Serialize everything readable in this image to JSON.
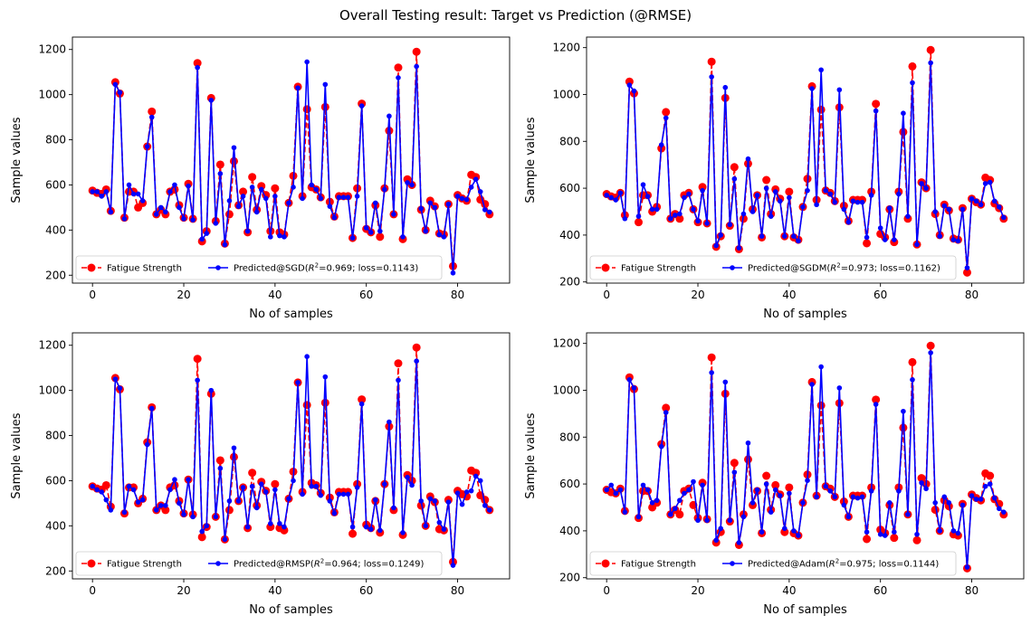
{
  "suptitle": "Overall Testing result: Target vs Prediction (@RMSE)",
  "colors": {
    "target": "#ff0000",
    "predicted": "#0000ff"
  },
  "chart_data": [
    {
      "type": "line",
      "xlabel": "No of samples",
      "ylabel": "Sample values",
      "xlim": [
        -4.4,
        91.4
      ],
      "ylim": [
        165,
        1255
      ],
      "xticks": [
        0,
        20,
        40,
        60,
        80
      ],
      "yticks": [
        200,
        400,
        600,
        800,
        1000,
        1200
      ],
      "legend_position": "lower center",
      "series": [
        {
          "name": "Fatigue Strength",
          "color": "#ff0000",
          "marker": "large-circle",
          "style": "dashed",
          "values": [
            575,
            565,
            560,
            580,
            485,
            1055,
            1005,
            455,
            570,
            570,
            500,
            520,
            770,
            925,
            470,
            490,
            470,
            570,
            580,
            510,
            455,
            605,
            450,
            1140,
            350,
            395,
            985,
            440,
            690,
            340,
            470,
            705,
            510,
            570,
            390,
            635,
            490,
            595,
            555,
            395,
            585,
            390,
            380,
            520,
            640,
            1035,
            550,
            935,
            590,
            580,
            545,
            945,
            525,
            460,
            550,
            550,
            550,
            365,
            585,
            960,
            405,
            390,
            510,
            370,
            585,
            840,
            470,
            1120,
            360,
            625,
            600,
            1190,
            490,
            400,
            530,
            505,
            385,
            380,
            515,
            240,
            555,
            540,
            530,
            645,
            635,
            535,
            515,
            470
          ]
        },
        {
          "name": "Predicted@SGD(R²=0.969; loss=0.1143)",
          "color": "#0000ff",
          "marker": "small-circle",
          "style": "solid",
          "values": [
            570,
            570,
            550,
            570,
            480,
            1045,
            1010,
            450,
            600,
            560,
            560,
            530,
            770,
            900,
            470,
            500,
            480,
            570,
            600,
            500,
            450,
            595,
            445,
            1120,
            360,
            385,
            975,
            430,
            650,
            335,
            530,
            765,
            505,
            550,
            395,
            590,
            480,
            580,
            540,
            370,
            550,
            375,
            370,
            520,
            590,
            1030,
            540,
            1145,
            600,
            580,
            540,
            1045,
            505,
            455,
            545,
            545,
            545,
            365,
            550,
            950,
            410,
            390,
            520,
            395,
            580,
            905,
            470,
            1075,
            370,
            610,
            600,
            1125,
            495,
            395,
            520,
            500,
            380,
            370,
            515,
            210,
            550,
            540,
            535,
            590,
            625,
            570,
            490,
            480
          ]
        }
      ]
    },
    {
      "type": "line",
      "xlabel": "No of samples",
      "ylabel": "Sample values",
      "xlim": [
        -4.4,
        91.4
      ],
      "ylim": [
        195,
        1245
      ],
      "xticks": [
        0,
        20,
        40,
        60,
        80
      ],
      "yticks": [
        200,
        400,
        600,
        800,
        1000,
        1200
      ],
      "legend_position": "lower center",
      "series": [
        {
          "name": "Fatigue Strength",
          "color": "#ff0000",
          "marker": "large-circle",
          "style": "dashed",
          "values": [
            575,
            565,
            560,
            580,
            485,
            1055,
            1005,
            455,
            570,
            570,
            500,
            520,
            770,
            925,
            470,
            490,
            470,
            570,
            580,
            510,
            455,
            605,
            450,
            1140,
            350,
            395,
            985,
            440,
            690,
            340,
            470,
            705,
            510,
            570,
            390,
            635,
            490,
            595,
            555,
            395,
            585,
            390,
            380,
            520,
            640,
            1035,
            550,
            935,
            590,
            580,
            545,
            945,
            525,
            460,
            550,
            550,
            550,
            365,
            585,
            960,
            405,
            390,
            510,
            370,
            585,
            840,
            470,
            1120,
            360,
            625,
            600,
            1190,
            490,
            400,
            530,
            505,
            385,
            380,
            515,
            240,
            555,
            540,
            530,
            645,
            635,
            535,
            515,
            470
          ]
        },
        {
          "name": "Predicted@SGDM(R²=0.973; loss=0.1162)",
          "color": "#0000ff",
          "marker": "small-circle",
          "style": "solid",
          "values": [
            570,
            560,
            550,
            580,
            470,
            1040,
            1015,
            480,
            615,
            565,
            510,
            510,
            785,
            900,
            470,
            485,
            490,
            560,
            575,
            510,
            460,
            590,
            450,
            1075,
            355,
            400,
            1030,
            445,
            640,
            345,
            490,
            725,
            500,
            570,
            395,
            600,
            480,
            585,
            545,
            395,
            560,
            395,
            375,
            520,
            590,
            1025,
            530,
            1105,
            590,
            575,
            540,
            1020,
            510,
            455,
            545,
            540,
            540,
            390,
            570,
            930,
            430,
            380,
            515,
            380,
            575,
            920,
            480,
            1050,
            360,
            620,
            600,
            1135,
            500,
            395,
            525,
            510,
            380,
            375,
            510,
            260,
            555,
            545,
            530,
            620,
            625,
            545,
            520,
            475
          ]
        }
      ]
    },
    {
      "type": "line",
      "xlabel": "No of samples",
      "ylabel": "Sample values",
      "xlim": [
        -4.4,
        91.4
      ],
      "ylim": [
        165,
        1255
      ],
      "xticks": [
        0,
        20,
        40,
        60,
        80
      ],
      "yticks": [
        200,
        400,
        600,
        800,
        1000,
        1200
      ],
      "legend_position": "lower center",
      "series": [
        {
          "name": "Fatigue Strength",
          "color": "#ff0000",
          "marker": "large-circle",
          "style": "dashed",
          "values": [
            575,
            565,
            560,
            580,
            485,
            1055,
            1005,
            455,
            570,
            570,
            500,
            520,
            770,
            925,
            470,
            490,
            470,
            570,
            580,
            510,
            455,
            605,
            450,
            1140,
            350,
            395,
            985,
            440,
            690,
            340,
            470,
            705,
            510,
            570,
            390,
            635,
            490,
            595,
            555,
            395,
            585,
            390,
            380,
            520,
            640,
            1035,
            550,
            935,
            590,
            580,
            545,
            945,
            525,
            460,
            550,
            550,
            550,
            365,
            585,
            960,
            405,
            390,
            510,
            370,
            585,
            840,
            470,
            1120,
            360,
            625,
            600,
            1190,
            490,
            400,
            530,
            505,
            385,
            380,
            515,
            240,
            555,
            540,
            530,
            645,
            635,
            535,
            515,
            470
          ]
        },
        {
          "name": "Predicted@RMSP(R²=0.964; loss=0.1249)",
          "color": "#0000ff",
          "marker": "small-circle",
          "style": "solid",
          "values": [
            575,
            560,
            550,
            515,
            470,
            1050,
            1010,
            460,
            575,
            560,
            505,
            515,
            760,
            920,
            470,
            490,
            490,
            560,
            605,
            500,
            450,
            605,
            440,
            1045,
            375,
            400,
            1000,
            440,
            655,
            340,
            510,
            745,
            510,
            570,
            395,
            575,
            480,
            585,
            550,
            410,
            560,
            410,
            395,
            520,
            600,
            1035,
            540,
            1150,
            575,
            575,
            535,
            1060,
            510,
            455,
            540,
            540,
            540,
            395,
            570,
            940,
            395,
            385,
            515,
            380,
            585,
            860,
            480,
            1045,
            370,
            615,
            580,
            1130,
            510,
            400,
            520,
            510,
            415,
            385,
            505,
            225,
            545,
            495,
            550,
            555,
            620,
            600,
            490,
            470
          ]
        }
      ]
    },
    {
      "type": "line",
      "xlabel": "No of samples",
      "ylabel": "Sample values",
      "xlim": [
        -4.4,
        91.4
      ],
      "ylim": [
        195,
        1245
      ],
      "xticks": [
        0,
        20,
        40,
        60,
        80
      ],
      "yticks": [
        200,
        400,
        600,
        800,
        1000,
        1200
      ],
      "legend_position": "lower center",
      "series": [
        {
          "name": "Fatigue Strength",
          "color": "#ff0000",
          "marker": "large-circle",
          "style": "dashed",
          "values": [
            575,
            565,
            560,
            580,
            485,
            1055,
            1005,
            455,
            570,
            570,
            500,
            520,
            770,
            925,
            470,
            490,
            470,
            570,
            580,
            510,
            455,
            605,
            450,
            1140,
            350,
            395,
            985,
            440,
            690,
            340,
            470,
            705,
            510,
            570,
            390,
            635,
            490,
            595,
            555,
            395,
            585,
            390,
            380,
            520,
            640,
            1035,
            550,
            935,
            590,
            580,
            545,
            945,
            525,
            460,
            550,
            550,
            550,
            365,
            585,
            960,
            405,
            390,
            510,
            370,
            585,
            840,
            470,
            1120,
            360,
            625,
            600,
            1190,
            490,
            400,
            530,
            505,
            385,
            380,
            515,
            240,
            555,
            540,
            530,
            645,
            635,
            535,
            515,
            470
          ]
        },
        {
          "name": "Predicted@Adam(R²=0.975; loss=0.1144)",
          "color": "#0000ff",
          "marker": "small-circle",
          "style": "solid",
          "values": [
            575,
            595,
            560,
            575,
            480,
            1045,
            1010,
            460,
            595,
            575,
            520,
            530,
            760,
            905,
            470,
            495,
            530,
            560,
            575,
            610,
            445,
            595,
            445,
            1075,
            360,
            410,
            1035,
            445,
            650,
            350,
            460,
            775,
            520,
            575,
            395,
            600,
            480,
            575,
            550,
            410,
            560,
            400,
            380,
            520,
            615,
            1025,
            545,
            1100,
            590,
            570,
            545,
            1010,
            510,
            460,
            545,
            540,
            545,
            395,
            570,
            940,
            385,
            380,
            520,
            395,
            570,
            910,
            470,
            1045,
            385,
            605,
            580,
            1160,
            520,
            400,
            545,
            520,
            400,
            390,
            510,
            245,
            550,
            535,
            535,
            590,
            600,
            540,
            495,
            480
          ]
        }
      ]
    }
  ]
}
